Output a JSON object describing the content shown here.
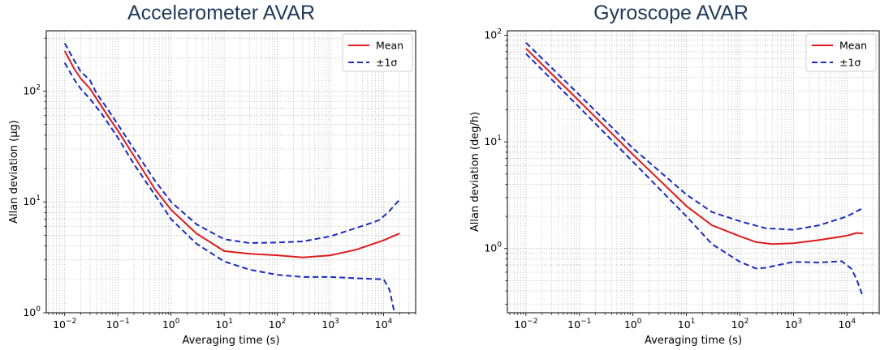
{
  "chart_data": [
    {
      "type": "line",
      "title": "Accelerometer AVAR",
      "xlabel": "Averaging time (s)",
      "ylabel": "Allan deviation (μg)",
      "xscale": "log",
      "yscale": "log",
      "xlim": [
        0.0045,
        40000
      ],
      "ylim": [
        1,
        350
      ],
      "xticks": [
        0.01,
        0.1,
        1,
        10,
        100,
        1000,
        10000
      ],
      "xtick_labels": [
        [
          "10",
          "−2"
        ],
        [
          "10",
          "−1"
        ],
        [
          "10",
          "0"
        ],
        [
          "10",
          "1"
        ],
        [
          "10",
          "2"
        ],
        [
          "10",
          "3"
        ],
        [
          "10",
          "4"
        ]
      ],
      "yticks": [
        1,
        10,
        100
      ],
      "ytick_labels": [
        [
          "10",
          "0"
        ],
        [
          "10",
          "1"
        ],
        [
          "10",
          "2"
        ]
      ],
      "grid": true,
      "legend_position": "top-right",
      "series": [
        {
          "name": "Mean",
          "style": "solid",
          "color": "#dd1c1c",
          "x": [
            0.01,
            0.015,
            0.02,
            0.03,
            0.04,
            0.06,
            0.1,
            0.2,
            0.5,
            1,
            3,
            10,
            30,
            100,
            300,
            1000,
            3000,
            10000,
            15000,
            20000
          ],
          "y": [
            230,
            160,
            130,
            105,
            85,
            63,
            44,
            26,
            13,
            8.5,
            5.2,
            3.6,
            3.4,
            3.3,
            3.15,
            3.3,
            3.7,
            4.5,
            4.9,
            5.2
          ]
        },
        {
          "name": "±1σ",
          "style": "dashed",
          "color": "#1a2bbf",
          "x": [
            0.01,
            0.015,
            0.02,
            0.03,
            0.04,
            0.06,
            0.1,
            0.2,
            0.5,
            1,
            3,
            10,
            30,
            100,
            300,
            1000,
            3000,
            8000,
            12000,
            15000,
            20000
          ],
          "y": [
            270,
            190,
            150,
            125,
            95,
            72,
            50,
            30,
            15.5,
            10,
            6.3,
            4.6,
            4.25,
            4.3,
            4.4,
            4.9,
            5.8,
            6.8,
            8,
            9,
            10.5
          ]
        },
        {
          "name": "",
          "style": "dashed",
          "color": "#1a2bbf",
          "x": [
            0.01,
            0.015,
            0.02,
            0.03,
            0.05,
            0.1,
            0.2,
            0.5,
            1,
            3,
            10,
            30,
            100,
            300,
            1000,
            3000,
            10000,
            13000,
            15000,
            16000
          ],
          "y": [
            180,
            128,
            105,
            85,
            62,
            38,
            22,
            11.5,
            7,
            4.2,
            2.9,
            2.45,
            2.2,
            2.1,
            2.1,
            2.05,
            2.0,
            1.6,
            1.15,
            1.0
          ]
        }
      ]
    },
    {
      "type": "line",
      "title": "Gyroscope AVAR",
      "xlabel": "Averaging time (s)",
      "ylabel": "Allan deviation (deg/h)",
      "xscale": "log",
      "yscale": "log",
      "xlim": [
        0.0045,
        40000
      ],
      "ylim": [
        0.25,
        110
      ],
      "xticks": [
        0.01,
        0.1,
        1,
        10,
        100,
        1000,
        10000
      ],
      "xtick_labels": [
        [
          "10",
          "−2"
        ],
        [
          "10",
          "−1"
        ],
        [
          "10",
          "0"
        ],
        [
          "10",
          "1"
        ],
        [
          "10",
          "2"
        ],
        [
          "10",
          "3"
        ],
        [
          "10",
          "4"
        ]
      ],
      "yticks": [
        1,
        10,
        100
      ],
      "ytick_labels": [
        [
          "10",
          "0"
        ],
        [
          "10",
          "1"
        ],
        [
          "10",
          "2"
        ]
      ],
      "grid": true,
      "legend_position": "top-right",
      "series": [
        {
          "name": "Mean",
          "style": "solid",
          "color": "#dd1c1c",
          "x": [
            0.01,
            0.1,
            1,
            10,
            30,
            100,
            200,
            400,
            1000,
            3000,
            10000,
            15000,
            20000
          ],
          "y": [
            75,
            24,
            7.6,
            2.5,
            1.65,
            1.3,
            1.15,
            1.1,
            1.12,
            1.2,
            1.32,
            1.4,
            1.38
          ]
        },
        {
          "name": "±1σ",
          "style": "dashed",
          "color": "#1a2bbf",
          "x": [
            0.01,
            0.1,
            1,
            10,
            30,
            100,
            300,
            1000,
            3000,
            10000,
            20000
          ],
          "y": [
            85,
            27.5,
            8.7,
            3.2,
            2.2,
            1.8,
            1.55,
            1.5,
            1.65,
            2.0,
            2.4
          ]
        },
        {
          "name": "",
          "style": "dashed",
          "color": "#1a2bbf",
          "x": [
            0.01,
            0.1,
            1,
            10,
            30,
            100,
            200,
            300,
            1000,
            3000,
            8000,
            12000,
            15000,
            20000
          ],
          "y": [
            67,
            21,
            6.5,
            2.0,
            1.1,
            0.75,
            0.65,
            0.66,
            0.75,
            0.74,
            0.76,
            0.65,
            0.52,
            0.35
          ]
        }
      ]
    }
  ]
}
